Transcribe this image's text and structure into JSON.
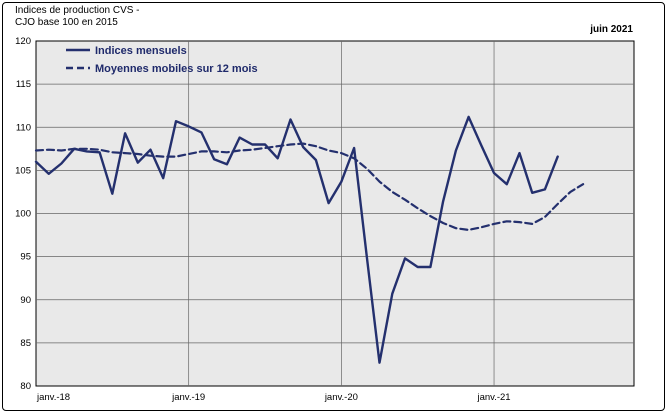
{
  "header": {
    "title_line1": "Indices de production CVS -",
    "title_line2": "CJO base 100 en 2015",
    "date_label": "juin 2021"
  },
  "colors": {
    "series": "#24306e",
    "plot_bg": "#e9e9e9",
    "grid": "#666666"
  },
  "chart_data": {
    "type": "line",
    "title": "Indices de production CVS - CJO base 100 en 2015",
    "ylim": [
      80,
      120
    ],
    "yticks": [
      80,
      85,
      90,
      95,
      100,
      105,
      110,
      115,
      120
    ],
    "x_tick_labels": [
      "janv.-18",
      "janv.-19",
      "janv.-20",
      "janv.-21"
    ],
    "x_tick_positions": [
      0,
      12,
      24,
      36
    ],
    "x_range": [
      0,
      47
    ],
    "legend": {
      "placement": "top-left"
    },
    "series": [
      {
        "name": "Indices mensuels",
        "style": "solid",
        "values": [
          106.0,
          104.6,
          105.8,
          107.5,
          107.2,
          107.1,
          102.3,
          109.3,
          105.9,
          107.4,
          104.1,
          110.7,
          110.1,
          109.4,
          106.3,
          105.7,
          108.8,
          108.0,
          108.0,
          106.4,
          110.9,
          107.7,
          106.2,
          101.2,
          103.7,
          107.6,
          95.0,
          82.7,
          90.7,
          94.8,
          93.8,
          93.8,
          101.4,
          107.3,
          111.2,
          107.9,
          104.7,
          103.4,
          107.0,
          102.4,
          102.8,
          106.6
        ],
        "x_start": 0
      },
      {
        "name": "Moyennes mobiles sur 12 mois",
        "style": "dashed",
        "values": [
          107.3,
          107.4,
          107.3,
          107.5,
          107.5,
          107.4,
          107.1,
          107.0,
          106.9,
          106.7,
          106.6,
          106.6,
          106.9,
          107.2,
          107.2,
          107.1,
          107.3,
          107.4,
          107.6,
          107.8,
          108.0,
          108.1,
          107.8,
          107.3,
          107.0,
          106.4,
          105.2,
          103.7,
          102.5,
          101.6,
          100.6,
          99.7,
          98.9,
          98.3,
          98.1,
          98.4,
          98.8,
          99.1,
          99.0,
          98.8,
          99.6,
          101.1,
          102.5,
          103.4
        ],
        "x_start": 0
      }
    ]
  }
}
